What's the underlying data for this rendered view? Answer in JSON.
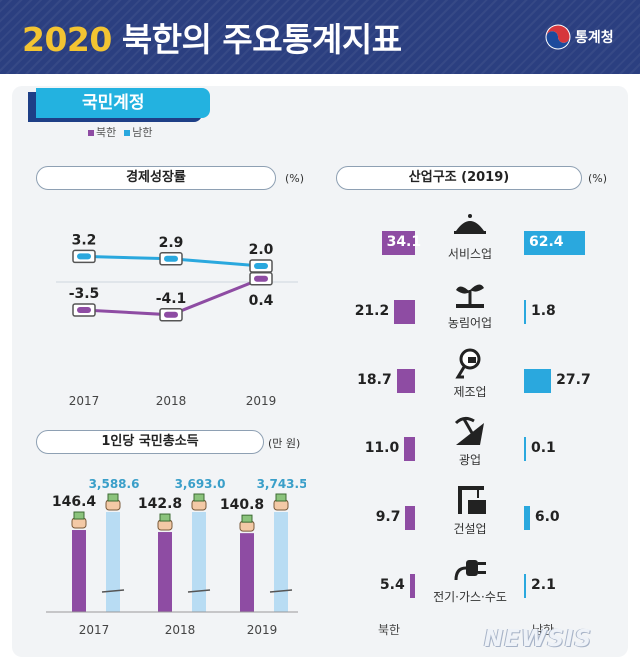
{
  "header": {
    "year": "2020",
    "title_rest": "북한의 주요통계지표",
    "org": "통계청"
  },
  "section_tab": "국민계정",
  "legend": {
    "north": "북한",
    "south": "남한",
    "north_color": "#8e4ca3",
    "south_color": "#2aa8de"
  },
  "growth": {
    "title": "경제성장률",
    "unit": "(%)",
    "chart_data": {
      "type": "line",
      "categories": [
        "2017",
        "2018",
        "2019"
      ],
      "series": [
        {
          "name": "남한",
          "values": [
            3.2,
            2.9,
            2.0
          ]
        },
        {
          "name": "북한",
          "values": [
            -3.5,
            -4.1,
            0.4
          ]
        }
      ],
      "labels": {
        "south": [
          "3.2",
          "2.9",
          "2.0"
        ],
        "north": [
          "-3.5",
          "-4.1",
          "0.4"
        ]
      }
    }
  },
  "gni": {
    "title": "1인당 국민총소득",
    "unit": "(만 원)",
    "chart_data": {
      "type": "bar",
      "categories": [
        "2017",
        "2018",
        "2019"
      ],
      "series": [
        {
          "name": "북한",
          "values": [
            146.4,
            142.8,
            140.8
          ]
        },
        {
          "name": "남한",
          "values": [
            3588.6,
            3693.0,
            3743.5
          ]
        }
      ],
      "labels": {
        "north": [
          "146.4",
          "142.8",
          "140.8"
        ],
        "south": [
          "3,588.6",
          "3,693.0",
          "3,743.5"
        ]
      }
    }
  },
  "industry": {
    "title": "산업구조 (2019)",
    "unit": "(%)",
    "chart_data": {
      "type": "bar",
      "categories": [
        "서비스업",
        "농림어업",
        "제조업",
        "광업",
        "건설업",
        "전기·가스·수도"
      ],
      "series": [
        {
          "name": "북한",
          "values": [
            34.1,
            21.2,
            18.7,
            11.0,
            9.7,
            5.4
          ]
        },
        {
          "name": "남한",
          "values": [
            62.4,
            1.8,
            27.7,
            0.1,
            6.0,
            2.1
          ]
        }
      ],
      "labels": {
        "north": [
          "34.1",
          "21.2",
          "18.7",
          "11.0",
          "9.7",
          "5.4"
        ],
        "south": [
          "62.4",
          "1.8",
          "27.7",
          "0.1",
          "6.0",
          "2.1"
        ]
      }
    },
    "icons": [
      "service-icon",
      "farming-icon",
      "manufacturing-icon",
      "mining-icon",
      "construction-icon",
      "utilities-plug-icon"
    ],
    "footer": {
      "north": "북한",
      "south": "남한"
    }
  },
  "watermark": "NEWSIS"
}
